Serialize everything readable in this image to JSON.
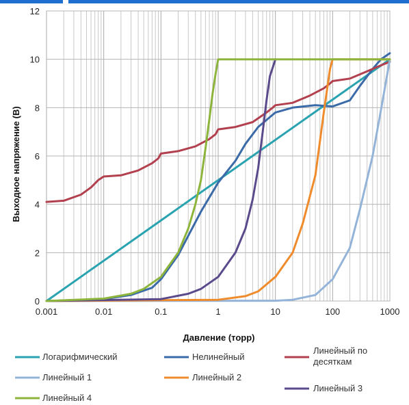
{
  "chart_data": {
    "type": "line",
    "xscale": "log",
    "xlim": [
      0.001,
      1000
    ],
    "ylim": [
      0,
      12
    ],
    "grid": true,
    "legend_position": "bottom",
    "xlabel": "Давление (торр)",
    "ylabel": "Выходное напряжение (В)",
    "x_ticks": [
      "0.001",
      "0.01",
      "0.1",
      "1",
      "10",
      "100",
      "1000"
    ],
    "y_ticks": [
      "0",
      "2",
      "4",
      "6",
      "8",
      "10",
      "12"
    ],
    "colors": {
      "log": "#2aa3b0",
      "nonlinear": "#3a6aa8",
      "decade": "#b2404e",
      "lin1": "#93b4d8",
      "lin2": "#f08b2c",
      "lin3": "#5a4a8c",
      "lin4": "#8db53c"
    },
    "series": [
      {
        "key": "log",
        "name": "Логарифмический",
        "points": [
          [
            0.001,
            0
          ],
          [
            1000,
            10
          ]
        ]
      },
      {
        "key": "nonlinear",
        "name": "Нелинейный",
        "points": [
          [
            0.001,
            0
          ],
          [
            0.01,
            0.08
          ],
          [
            0.03,
            0.25
          ],
          [
            0.07,
            0.55
          ],
          [
            0.1,
            0.9
          ],
          [
            0.2,
            1.9
          ],
          [
            0.3,
            2.7
          ],
          [
            0.5,
            3.7
          ],
          [
            1,
            4.9
          ],
          [
            2,
            5.8
          ],
          [
            3,
            6.5
          ],
          [
            5,
            7.2
          ],
          [
            10,
            7.8
          ],
          [
            20,
            8.0
          ],
          [
            50,
            8.1
          ],
          [
            100,
            8.05
          ],
          [
            200,
            8.3
          ],
          [
            300,
            8.9
          ],
          [
            500,
            9.6
          ],
          [
            700,
            10.0
          ],
          [
            1000,
            10.25
          ]
        ]
      },
      {
        "key": "decade",
        "name": "Линейный по десяткам",
        "points": [
          [
            0.001,
            4.1
          ],
          [
            0.002,
            4.15
          ],
          [
            0.004,
            4.4
          ],
          [
            0.006,
            4.7
          ],
          [
            0.008,
            5.0
          ],
          [
            0.01,
            5.15
          ],
          [
            0.02,
            5.2
          ],
          [
            0.04,
            5.4
          ],
          [
            0.07,
            5.7
          ],
          [
            0.09,
            5.9
          ],
          [
            0.1,
            6.1
          ],
          [
            0.2,
            6.2
          ],
          [
            0.4,
            6.4
          ],
          [
            0.7,
            6.7
          ],
          [
            0.9,
            6.9
          ],
          [
            1,
            7.1
          ],
          [
            2,
            7.2
          ],
          [
            4,
            7.4
          ],
          [
            7,
            7.8
          ],
          [
            9,
            8.0
          ],
          [
            10,
            8.1
          ],
          [
            20,
            8.2
          ],
          [
            40,
            8.5
          ],
          [
            70,
            8.8
          ],
          [
            90,
            9.0
          ],
          [
            100,
            9.1
          ],
          [
            200,
            9.2
          ],
          [
            400,
            9.5
          ],
          [
            700,
            9.75
          ],
          [
            1000,
            9.9
          ]
        ]
      },
      {
        "key": "lin1",
        "name": "Линейный 1",
        "points": [
          [
            0.001,
            0
          ],
          [
            10,
            0.01
          ],
          [
            20,
            0.05
          ],
          [
            50,
            0.25
          ],
          [
            100,
            0.9
          ],
          [
            200,
            2.2
          ],
          [
            300,
            3.8
          ],
          [
            500,
            6.0
          ],
          [
            700,
            7.9
          ],
          [
            1000,
            10.0
          ]
        ]
      },
      {
        "key": "lin2",
        "name": "Линейный 2",
        "points": [
          [
            0.001,
            0
          ],
          [
            1,
            0.05
          ],
          [
            3,
            0.2
          ],
          [
            5,
            0.4
          ],
          [
            10,
            1.0
          ],
          [
            20,
            2.0
          ],
          [
            30,
            3.2
          ],
          [
            50,
            5.2
          ],
          [
            70,
            7.8
          ],
          [
            90,
            9.6
          ],
          [
            100,
            10.0
          ],
          [
            1000,
            10.0
          ]
        ]
      },
      {
        "key": "lin3",
        "name": "Линейный 3",
        "points": [
          [
            0.001,
            0
          ],
          [
            0.1,
            0.08
          ],
          [
            0.3,
            0.3
          ],
          [
            0.5,
            0.5
          ],
          [
            1,
            1.0
          ],
          [
            2,
            2.0
          ],
          [
            3,
            3.0
          ],
          [
            4,
            4.2
          ],
          [
            5,
            5.5
          ],
          [
            6,
            7.0
          ],
          [
            7,
            8.3
          ],
          [
            8,
            9.3
          ],
          [
            10,
            10.0
          ]
        ]
      },
      {
        "key": "lin4",
        "name": "Линейный 4",
        "points": [
          [
            0.001,
            0
          ],
          [
            0.01,
            0.1
          ],
          [
            0.03,
            0.3
          ],
          [
            0.05,
            0.5
          ],
          [
            0.1,
            1.0
          ],
          [
            0.2,
            2.0
          ],
          [
            0.3,
            3.0
          ],
          [
            0.4,
            4.0
          ],
          [
            0.5,
            5.0
          ],
          [
            0.6,
            6.3
          ],
          [
            0.7,
            7.5
          ],
          [
            0.8,
            8.6
          ],
          [
            0.9,
            9.4
          ],
          [
            1,
            10.0
          ],
          [
            1000,
            10.0
          ]
        ]
      }
    ],
    "legend": [
      {
        "key": "log",
        "label": "Логарифмический"
      },
      {
        "key": "nonlinear",
        "label": "Нелинейный"
      },
      {
        "key": "decade",
        "label_line1": "Линейный по",
        "label_line2": "десяткам"
      },
      {
        "key": "lin1",
        "label": "Линейный 1"
      },
      {
        "key": "lin2",
        "label": "Линейный 2"
      },
      {
        "key": "lin3",
        "label": "Линейный 3"
      },
      {
        "key": "lin4",
        "label": "Линейный 4"
      }
    ]
  }
}
